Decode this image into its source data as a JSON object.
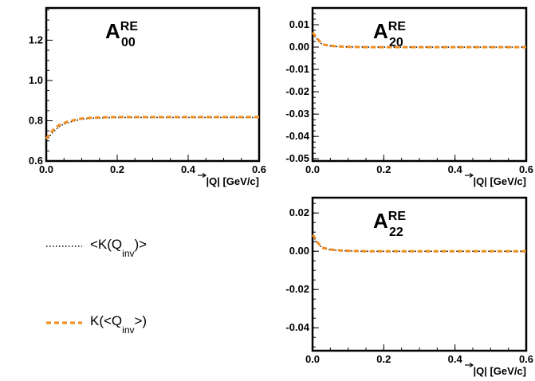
{
  "chart_data": [
    {
      "type": "line",
      "panel_label": {
        "base": "A",
        "sup": "RE",
        "sub": "00"
      },
      "xlabel": "|Q| [GeV/c]",
      "xlim": [
        0.0,
        0.6
      ],
      "ylim": [
        0.6,
        1.36
      ],
      "xticks": [
        "0.0",
        "0.2",
        "0.4",
        "0.6"
      ],
      "yticks": [
        "0.6",
        "0.8",
        "1.0",
        "1.2"
      ],
      "series": [
        {
          "name": "<K(Q_inv)>",
          "color": "#000000",
          "style": "dotted",
          "x": [
            0.0,
            0.01,
            0.02,
            0.03,
            0.04,
            0.06,
            0.08,
            0.1,
            0.13,
            0.16,
            0.2,
            0.3,
            0.4,
            0.5,
            0.6
          ],
          "y": [
            0.7,
            0.725,
            0.745,
            0.76,
            0.775,
            0.79,
            0.8,
            0.808,
            0.813,
            0.815,
            0.816,
            0.816,
            0.816,
            0.816,
            0.816
          ]
        },
        {
          "name": "K(<Q_inv>)",
          "color": "#f28c1e",
          "style": "dashed",
          "x": [
            0.0,
            0.01,
            0.02,
            0.03,
            0.04,
            0.06,
            0.08,
            0.1,
            0.13,
            0.16,
            0.2,
            0.3,
            0.4,
            0.5,
            0.6
          ],
          "y": [
            0.71,
            0.735,
            0.755,
            0.77,
            0.782,
            0.795,
            0.804,
            0.811,
            0.815,
            0.817,
            0.818,
            0.818,
            0.818,
            0.818,
            0.818
          ]
        }
      ]
    },
    {
      "type": "line",
      "panel_label": {
        "base": "A",
        "sup": "RE",
        "sub": "20"
      },
      "xlabel": "|Q| [GeV/c]",
      "xlim": [
        0.0,
        0.6
      ],
      "ylim": [
        -0.051,
        0.0175
      ],
      "xticks": [
        "0.0",
        "0.2",
        "0.4",
        "0.6"
      ],
      "yticks": [
        "0.01",
        "0.00",
        "-0.01",
        "-0.02",
        "-0.03",
        "-0.04",
        "-0.05"
      ],
      "series": [
        {
          "name": "<K(Q_inv)>",
          "color": "#000000",
          "style": "dotted",
          "x": [
            0.0,
            0.005,
            0.01,
            0.02,
            0.03,
            0.05,
            0.07,
            0.1,
            0.15,
            0.2,
            0.4,
            0.6
          ],
          "y": [
            0.006,
            0.005,
            0.004,
            0.002,
            0.001,
            0.0005,
            0.0002,
            0.0001,
            0.0,
            0.0,
            0.0,
            0.0
          ]
        },
        {
          "name": "K(<Q_inv>)",
          "color": "#f28c1e",
          "style": "dashed",
          "x": [
            0.0,
            0.005,
            0.01,
            0.02,
            0.03,
            0.05,
            0.07,
            0.1,
            0.15,
            0.2,
            0.4,
            0.6
          ],
          "y": [
            0.0065,
            0.0055,
            0.0045,
            0.0025,
            0.0012,
            0.0006,
            0.0003,
            0.0001,
            0.0,
            0.0,
            0.0,
            0.0
          ]
        }
      ]
    },
    {
      "type": "line",
      "panel_label": {
        "base": "A",
        "sup": "RE",
        "sub": "22"
      },
      "xlabel": "|Q| [GeV/c]",
      "xlim": [
        0.0,
        0.6
      ],
      "ylim": [
        -0.052,
        0.028
      ],
      "xticks": [
        "0.0",
        "0.2",
        "0.4",
        "0.6"
      ],
      "yticks": [
        "0.02",
        "0.00",
        "-0.02",
        "-0.04"
      ],
      "series": [
        {
          "name": "<K(Q_inv)>",
          "color": "#000000",
          "style": "dotted",
          "x": [
            0.0,
            0.005,
            0.01,
            0.02,
            0.03,
            0.05,
            0.07,
            0.1,
            0.15,
            0.2,
            0.4,
            0.6
          ],
          "y": [
            0.008,
            0.007,
            0.005,
            0.003,
            0.0015,
            0.0008,
            0.0004,
            0.0002,
            0.0,
            0.0,
            0.0,
            0.0
          ]
        },
        {
          "name": "K(<Q_inv>)",
          "color": "#f28c1e",
          "style": "dashed",
          "x": [
            0.0,
            0.005,
            0.01,
            0.02,
            0.03,
            0.05,
            0.07,
            0.1,
            0.15,
            0.2,
            0.4,
            0.6
          ],
          "y": [
            0.0085,
            0.0075,
            0.0055,
            0.0033,
            0.0017,
            0.0009,
            0.0005,
            0.0002,
            0.0,
            0.0,
            0.0,
            0.0
          ]
        }
      ]
    }
  ],
  "legend": {
    "items": [
      {
        "label_main": "<K(Q",
        "label_sub": "inv",
        "label_end": ")>",
        "color": "#000000",
        "style": "dotted"
      },
      {
        "label_main": "K(<Q",
        "label_sub": "inv",
        "label_end": ">)",
        "color": "#f28c1e",
        "style": "dashed"
      }
    ]
  }
}
